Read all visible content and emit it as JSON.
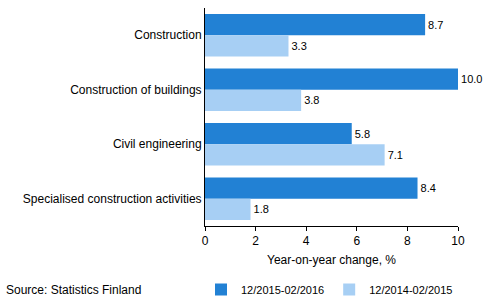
{
  "chart_data": {
    "type": "bar",
    "orientation": "horizontal",
    "categories": [
      "Construction",
      "Construction of buildings",
      "Civil engineering",
      "Specialised construction activities"
    ],
    "series": [
      {
        "name": "12/2015-02/2016",
        "color": "#2281d4",
        "values": [
          8.7,
          10.0,
          5.8,
          8.4
        ],
        "value_labels": [
          "8.7",
          "10.0",
          "5.8",
          "8.4"
        ]
      },
      {
        "name": "12/2014-02/2015",
        "color": "#a7cff4",
        "values": [
          3.3,
          3.8,
          7.1,
          1.8
        ],
        "value_labels": [
          "3.3",
          "3.8",
          "7.1",
          "1.8"
        ]
      }
    ],
    "xlabel": "Year-on-year change, %",
    "xlim": [
      0,
      10
    ],
    "xticks": [
      0,
      2,
      4,
      6,
      8,
      10
    ],
    "grid": false,
    "data_labels": true,
    "legend": "bottom right",
    "source": "Source: Statistics Finland"
  }
}
